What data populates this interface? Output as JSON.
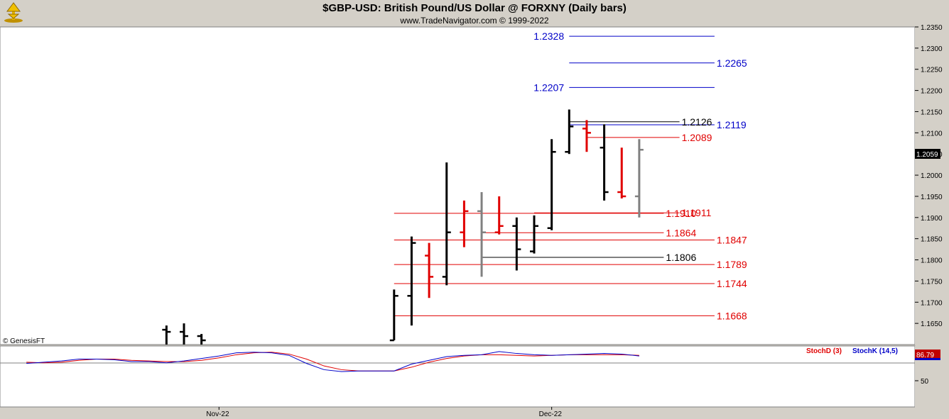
{
  "header": {
    "title": "$GBP-USD:  British Pound/US Dollar @ FORXNY  (Daily bars)",
    "subtitle": "www.TradeNavigator.com © 1999-2022"
  },
  "watermark": "© GenesisFT",
  "chart_data": [
    {
      "type": "ohlc",
      "ylim": [
        1.16,
        1.235
      ],
      "y_ticks": [
        "1.2350",
        "1.2300",
        "1.2250",
        "1.2200",
        "1.2150",
        "1.2100",
        "1.2050",
        "1.2000",
        "1.1950",
        "1.1900",
        "1.1850",
        "1.1800",
        "1.1750",
        "1.1700",
        "1.1650"
      ],
      "x_labels": [
        {
          "label": "Nov-22",
          "index": 12
        },
        {
          "label": "Dec-22",
          "index": 31
        }
      ],
      "last_price": "1.2059",
      "colors": {
        "up": "#000000",
        "down": "#e00000",
        "neutral": "#808080",
        "fib": "#0000c8",
        "support": "#e00000",
        "level": "#000000"
      },
      "bars": [
        {
          "i": 9,
          "o": 1.1635,
          "h": 1.1645,
          "l": 1.16,
          "c": 1.163,
          "color": "#000000"
        },
        {
          "i": 10,
          "o": 1.163,
          "h": 1.165,
          "l": 1.16,
          "c": 1.162,
          "color": "#000000"
        },
        {
          "i": 11,
          "o": 1.162,
          "h": 1.1625,
          "l": 1.16,
          "c": 1.161,
          "color": "#000000"
        },
        {
          "i": 22,
          "o": 1.161,
          "h": 1.173,
          "l": 1.161,
          "c": 1.1715,
          "color": "#000000"
        },
        {
          "i": 23,
          "o": 1.1715,
          "h": 1.1855,
          "l": 1.1645,
          "c": 1.184,
          "color": "#000000"
        },
        {
          "i": 24,
          "o": 1.181,
          "h": 1.184,
          "l": 1.171,
          "c": 1.176,
          "color": "#e00000"
        },
        {
          "i": 25,
          "o": 1.176,
          "h": 1.203,
          "l": 1.174,
          "c": 1.1865,
          "color": "#000000"
        },
        {
          "i": 26,
          "o": 1.1865,
          "h": 1.194,
          "l": 1.183,
          "c": 1.1915,
          "color": "#e00000"
        },
        {
          "i": 27,
          "o": 1.1915,
          "h": 1.196,
          "l": 1.176,
          "c": 1.1865,
          "color": "#808080"
        },
        {
          "i": 28,
          "o": 1.1865,
          "h": 1.195,
          "l": 1.186,
          "c": 1.188,
          "color": "#e00000"
        },
        {
          "i": 29,
          "o": 1.188,
          "h": 1.19,
          "l": 1.1775,
          "c": 1.1825,
          "color": "#000000"
        },
        {
          "i": 30,
          "o": 1.182,
          "h": 1.1905,
          "l": 1.1815,
          "c": 1.188,
          "color": "#000000"
        },
        {
          "i": 31,
          "o": 1.1875,
          "h": 1.2085,
          "l": 1.187,
          "c": 1.2055,
          "color": "#000000"
        },
        {
          "i": 32,
          "o": 1.2055,
          "h": 1.2155,
          "l": 1.205,
          "c": 1.2115,
          "color": "#000000"
        },
        {
          "i": 33,
          "o": 1.211,
          "h": 1.213,
          "l": 1.2055,
          "c": 1.21,
          "color": "#e00000"
        },
        {
          "i": 34,
          "o": 1.2065,
          "h": 1.212,
          "l": 1.194,
          "c": 1.196,
          "color": "#000000"
        },
        {
          "i": 35,
          "o": 1.196,
          "h": 1.2065,
          "l": 1.1945,
          "c": 1.195,
          "color": "#e00000"
        },
        {
          "i": 36,
          "o": 1.195,
          "h": 1.2085,
          "l": 1.19,
          "c": 1.206,
          "color": "#808080"
        }
      ],
      "levels": [
        {
          "value": 1.2328,
          "label": "1.2328",
          "color": "#0000c8",
          "x1": 32,
          "x2": 40.3,
          "label_side": "left"
        },
        {
          "value": 1.2265,
          "label": "1.2265",
          "color": "#0000c8",
          "x1": 32,
          "x2": 40.3,
          "label_side": "right"
        },
        {
          "value": 1.2207,
          "label": "1.2207",
          "color": "#0000c8",
          "x1": 32,
          "x2": 40.3,
          "label_side": "left"
        },
        {
          "value": 1.2119,
          "label": "1.2119",
          "color": "#0000c8",
          "x1": 32,
          "x2": 40.3,
          "label_side": "right"
        },
        {
          "value": 1.2126,
          "label": "1.2126",
          "color": "#000000",
          "x1": 32,
          "x2": 38.3,
          "label_side": "right"
        },
        {
          "value": 1.2089,
          "label": "1.2089",
          "color": "#e00000",
          "x1": 33,
          "x2": 38.3,
          "label_side": "right"
        },
        {
          "value": 1.191,
          "label": "1.1910",
          "color": "#e00000",
          "x1": 22,
          "x2": 37.4,
          "label_side": "right"
        },
        {
          "value": 1.1911,
          "label": "1.1911",
          "color": "#e00000",
          "x1": 30,
          "x2": 38.3,
          "label_side": "right"
        },
        {
          "value": 1.1864,
          "label": "1.1864",
          "color": "#e00000",
          "x1": 27,
          "x2": 37.4,
          "label_side": "right"
        },
        {
          "value": 1.1847,
          "label": "1.1847",
          "color": "#e00000",
          "x1": 22,
          "x2": 40.3,
          "label_side": "right"
        },
        {
          "value": 1.1806,
          "label": "1.1806",
          "color": "#000000",
          "x1": 27,
          "x2": 37.4,
          "label_side": "right"
        },
        {
          "value": 1.1789,
          "label": "1.1789",
          "color": "#e00000",
          "x1": 22,
          "x2": 40.3,
          "label_side": "right"
        },
        {
          "value": 1.1744,
          "label": "1.1744",
          "color": "#e00000",
          "x1": 22,
          "x2": 40.3,
          "label_side": "right"
        },
        {
          "value": 1.1668,
          "label": "1.1668",
          "color": "#e00000",
          "x1": 22,
          "x2": 40.3,
          "label_side": "right"
        }
      ]
    },
    {
      "type": "line",
      "ylim": [
        0,
        100
      ],
      "y_ticks": [
        "50"
      ],
      "last_value": "86.79",
      "series": [
        {
          "name": "StochD (3)",
          "color": "#e00000",
          "x": [
            1,
            2,
            3,
            4,
            5,
            6,
            7,
            8,
            9,
            10,
            11,
            12,
            13,
            14,
            15,
            16,
            17,
            18,
            19,
            20,
            21,
            22,
            23,
            24,
            25,
            26,
            27,
            28,
            29,
            30,
            31,
            32,
            33,
            34,
            35,
            36
          ],
          "values": [
            74,
            73,
            74,
            77,
            79,
            79,
            77,
            76,
            75,
            75,
            77,
            81,
            86,
            89,
            90,
            87,
            79,
            68,
            62,
            60,
            60,
            60,
            66,
            74,
            80,
            84,
            86,
            86,
            85,
            84,
            85,
            86,
            86,
            86,
            86,
            85
          ]
        },
        {
          "name": "StochK (14,5)",
          "color": "#0000c8",
          "x": [
            1,
            2,
            3,
            4,
            5,
            6,
            7,
            8,
            9,
            10,
            11,
            12,
            13,
            14,
            15,
            16,
            17,
            18,
            19,
            20,
            21,
            22,
            23,
            24,
            25,
            26,
            27,
            28,
            29,
            30,
            31,
            32,
            33,
            34,
            35,
            36
          ],
          "values": [
            72,
            74,
            76,
            79,
            79,
            78,
            75,
            75,
            73,
            76,
            80,
            84,
            89,
            90,
            89,
            85,
            72,
            62,
            59,
            60,
            60,
            60,
            71,
            77,
            83,
            85,
            86,
            91,
            88,
            86,
            85,
            86,
            87,
            88,
            87,
            84
          ]
        }
      ]
    }
  ]
}
